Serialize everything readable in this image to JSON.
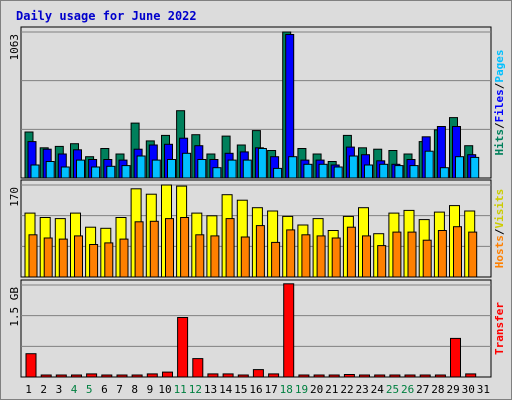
{
  "chart_data": {
    "type": "bar",
    "title": "Daily usage for June 2022",
    "categories": [
      "1",
      "2",
      "3",
      "4",
      "5",
      "6",
      "7",
      "8",
      "9",
      "10",
      "11",
      "12",
      "13",
      "14",
      "15",
      "16",
      "17",
      "18",
      "19",
      "20",
      "21",
      "22",
      "23",
      "24",
      "25",
      "26",
      "27",
      "28",
      "29",
      "30",
      "31"
    ],
    "weekend_days": [
      "4",
      "5",
      "11",
      "12",
      "18",
      "19",
      "25",
      "26"
    ],
    "colors": {
      "title": "#0000cc",
      "hits": "#00805c",
      "files": "#0000ff",
      "pages": "#00c0ff",
      "visits": "#ffff00",
      "hosts": "#ff8000",
      "kbytes": "#ff0000",
      "weekend_label": "#008040",
      "gridline": "#808080",
      "panel_bg": "#dcdcdc"
    },
    "panels": [
      {
        "id": "hits-files-pages",
        "ytick": "1063",
        "ymax": 1063,
        "side_label": [
          {
            "text": "Hits",
            "color": "#00805c"
          },
          {
            "text": "/",
            "color": "#000000"
          },
          {
            "text": "Files",
            "color": "#0000ff"
          },
          {
            "text": "/",
            "color": "#000000"
          },
          {
            "text": "Pages",
            "color": "#00c0ff"
          }
        ],
        "series": [
          {
            "name": "Hits",
            "values": [
              335,
              220,
              230,
              250,
              155,
              215,
              175,
              400,
              270,
              310,
              490,
              315,
              175,
              305,
              240,
              345,
              200,
              1063,
              215,
              175,
              120,
              310,
              220,
              210,
              200,
              175,
              265,
              350,
              440,
              235,
              0
            ]
          },
          {
            "name": "Files",
            "values": [
              265,
              210,
              175,
              205,
              135,
              135,
              130,
              210,
              240,
              245,
              290,
              235,
              135,
              180,
              190,
              220,
              155,
              1045,
              130,
              130,
              95,
              225,
              170,
              125,
              100,
              135,
              300,
              375,
              375,
              170,
              0
            ]
          },
          {
            "name": "Pages",
            "values": [
              95,
              120,
              80,
              130,
              80,
              85,
              90,
              160,
              130,
              135,
              180,
              135,
              75,
              130,
              130,
              215,
              70,
              155,
              100,
              100,
              80,
              160,
              95,
              100,
              90,
              90,
              195,
              75,
              155,
              150,
              0
            ]
          }
        ]
      },
      {
        "id": "visits-hosts",
        "ytick": "170",
        "ymax": 170,
        "side_label": [
          {
            "text": "Hosts",
            "color": "#ff8000"
          },
          {
            "text": "/",
            "color": "#000000"
          },
          {
            "text": "Visits",
            "color": "#cccc00"
          }
        ],
        "series": [
          {
            "name": "Visits",
            "values": [
              118,
              110,
              108,
              118,
              92,
              90,
              110,
              163,
              153,
              170,
              168,
              118,
              113,
              152,
              142,
              128,
              122,
              112,
              96,
              108,
              86,
              112,
              128,
              80,
              118,
              123,
              106,
              120,
              132,
              122,
              0
            ]
          },
          {
            "name": "Hosts",
            "values": [
              78,
              72,
              70,
              76,
              60,
              63,
              70,
              102,
              103,
              108,
              110,
              78,
              76,
              108,
              74,
              95,
              64,
              87,
              78,
              76,
              72,
              92,
              76,
              58,
              83,
              83,
              68,
              86,
              93,
              83,
              0
            ]
          }
        ]
      },
      {
        "id": "transfer",
        "ytick": "1.5 GB",
        "ymax": 1.5,
        "side_label": [
          {
            "text": "Transfer",
            "color": "#ff0000"
          }
        ],
        "series": [
          {
            "name": "Transfer",
            "values": [
              0.38,
              0.025,
              0.025,
              0.025,
              0.05,
              0.025,
              0.025,
              0.025,
              0.05,
              0.08,
              0.97,
              0.3,
              0.05,
              0.05,
              0.025,
              0.12,
              0.05,
              1.52,
              0.025,
              0.025,
              0.025,
              0.04,
              0.025,
              0.025,
              0.025,
              0.025,
              0.025,
              0.025,
              0.63,
              0.05,
              0
            ]
          }
        ]
      }
    ]
  }
}
